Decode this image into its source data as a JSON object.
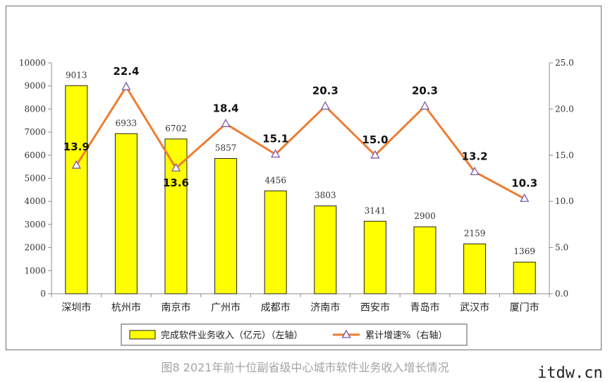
{
  "chart_data": {
    "type": "bar",
    "categories": [
      "深圳市",
      "杭州市",
      "南京市",
      "广州市",
      "成都市",
      "济南市",
      "西安市",
      "青岛市",
      "武汉市",
      "厦门市"
    ],
    "series": [
      {
        "name": "完成软件业务收入（亿元）（左轴）",
        "type": "bar",
        "axis": "left",
        "color": "#ffff00",
        "values": [
          9013,
          6933,
          6702,
          5857,
          4456,
          3803,
          3141,
          2900,
          2159,
          1369
        ]
      },
      {
        "name": "累计增速%（右轴）",
        "type": "line",
        "axis": "right",
        "color": "#ed7d31",
        "values": [
          13.9,
          22.4,
          13.6,
          18.4,
          15.1,
          20.3,
          15.0,
          20.3,
          13.2,
          10.3
        ]
      }
    ],
    "left_axis": {
      "min": 0,
      "max": 10000,
      "ticks": [
        "0",
        "1000",
        "2000",
        "3000",
        "4000",
        "5000",
        "6000",
        "7000",
        "8000",
        "9000",
        "10000"
      ]
    },
    "right_axis": {
      "min": 0,
      "max": 25,
      "ticks": [
        "0.0",
        "5.0",
        "10.0",
        "15.0",
        "20.0",
        "25.0"
      ]
    },
    "bar_labels": [
      "9013",
      "6933",
      "6702",
      "5857",
      "4456",
      "3803",
      "3141",
      "2900",
      "2159",
      "1369"
    ],
    "line_labels": [
      "13.9",
      "22.4",
      "13.6",
      "18.4",
      "15.1",
      "20.3",
      "15.0",
      "20.3",
      "13.2",
      "10.3"
    ],
    "legend_position": "bottom",
    "grid": false
  },
  "caption": "图8  2021年前十位副省级中心城市软件业务收入增长情况",
  "watermark": "itdw.cn"
}
